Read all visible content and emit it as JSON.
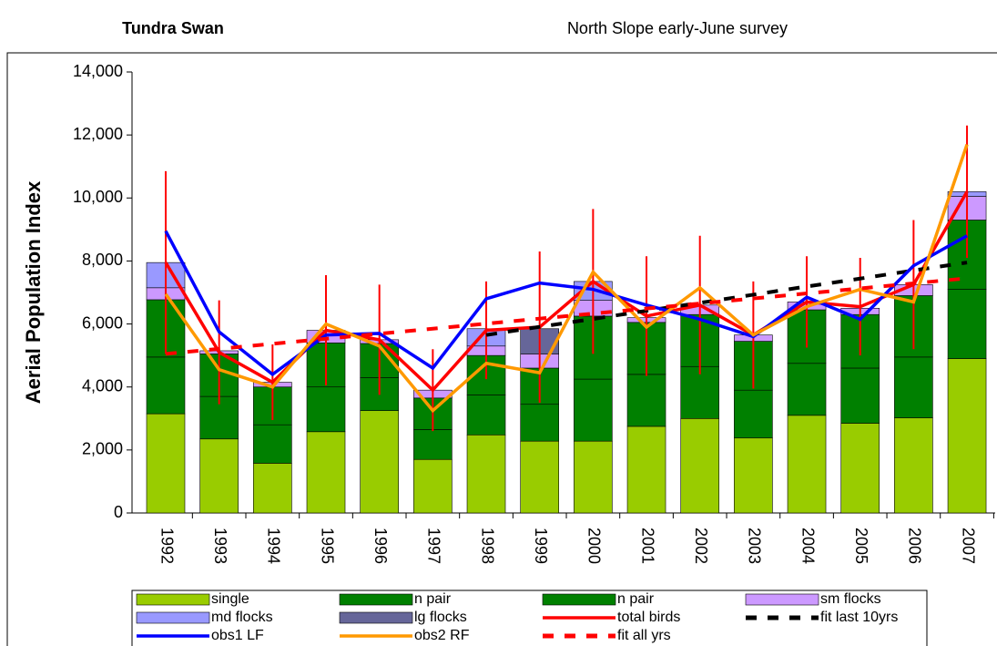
{
  "chart_data": {
    "type": "bar",
    "title": "Tundra Swan",
    "subtitle": "North Slope early-June survey",
    "y_label": "Aerial Population Index",
    "categories": [
      "1992",
      "1993",
      "1994",
      "1995",
      "1996",
      "1997",
      "1998",
      "1999",
      "2000",
      "2001",
      "2002",
      "2003",
      "2004",
      "2005",
      "2006",
      "2007"
    ],
    "ylim": [
      0,
      14000
    ],
    "yticks": [
      0,
      {
        "value": 2000,
        "label": "2,000"
      },
      {
        "value": 4000,
        "label": "4,000"
      },
      {
        "value": 6000,
        "label": "6,000"
      },
      {
        "value": 8000,
        "label": "8,000"
      },
      {
        "value": 10000,
        "label": "10,000"
      },
      {
        "value": 12000,
        "label": "12,000"
      },
      {
        "value": 14000,
        "label": "14,000"
      }
    ],
    "stacked": true,
    "series": [
      {
        "name": "single",
        "type": "bar",
        "color": "#99cc00",
        "values": [
          3150,
          2350,
          1580,
          2580,
          3250,
          1700,
          2480,
          2280,
          2280,
          2750,
          3000,
          2380,
          3100,
          2850,
          3020,
          4900
        ]
      },
      {
        "name": "n pair",
        "type": "bar",
        "color": "#008000",
        "values": [
          1800,
          1350,
          1220,
          1420,
          1050,
          950,
          1270,
          1170,
          1970,
          1650,
          1650,
          1520,
          1650,
          1750,
          1930,
          2200
        ]
      },
      {
        "name": "n pair",
        "type": "bar",
        "color": "#008000",
        "values": [
          1820,
          1350,
          1200,
          1400,
          1080,
          1000,
          1250,
          1150,
          2000,
          1650,
          1650,
          1550,
          1700,
          1700,
          1950,
          2200
        ]
      },
      {
        "name": "sm flocks",
        "type": "bar",
        "color": "#cc99ff",
        "values": [
          380,
          100,
          150,
          400,
          120,
          250,
          300,
          450,
          500,
          150,
          300,
          200,
          250,
          200,
          350,
          750
        ]
      },
      {
        "name": "md flocks",
        "type": "bar",
        "color": "#9999ff",
        "values": [
          800,
          0,
          0,
          0,
          0,
          0,
          550,
          0,
          600,
          0,
          0,
          0,
          0,
          0,
          0,
          150
        ]
      },
      {
        "name": "lg flocks",
        "type": "bar",
        "color": "#666699",
        "values": [
          0,
          0,
          0,
          0,
          0,
          0,
          0,
          800,
          0,
          0,
          0,
          0,
          0,
          0,
          0,
          0
        ]
      },
      {
        "name": "total birds",
        "type": "line",
        "color": "#ff0000",
        "dash": false,
        "values": [
          7950,
          5100,
          4150,
          5800,
          5500,
          3900,
          5800,
          5900,
          7350,
          6250,
          6600,
          5650,
          6700,
          6550,
          7250,
          10200
        ],
        "errors": [
          2900,
          1650,
          1200,
          1750,
          1750,
          1300,
          1550,
          2400,
          2300,
          1900,
          2200,
          1700,
          1450,
          1550,
          2050,
          2100
        ]
      },
      {
        "name": "fit last 10yrs",
        "type": "line",
        "color": "#000000",
        "dash": true,
        "values": [
          null,
          null,
          null,
          null,
          null,
          null,
          5650,
          5910,
          6160,
          6420,
          6670,
          6930,
          7190,
          7440,
          7700,
          7950
        ]
      },
      {
        "name": "obs1 LF",
        "type": "line",
        "color": "#0000ff",
        "dash": false,
        "values": [
          8950,
          5750,
          4400,
          5650,
          5700,
          4600,
          6800,
          7300,
          7100,
          6600,
          6150,
          5600,
          6850,
          6150,
          7850,
          8800
        ]
      },
      {
        "name": "obs2 RF",
        "type": "line",
        "color": "#ff9900",
        "dash": false,
        "values": [
          6950,
          4550,
          4000,
          6000,
          5300,
          3250,
          4750,
          4450,
          7650,
          5900,
          7150,
          5650,
          6550,
          7100,
          6700,
          11700
        ]
      },
      {
        "name": "fit all yrs",
        "type": "line",
        "color": "#ff0000",
        "dash": true,
        "values": [
          5050,
          5210,
          5370,
          5530,
          5690,
          5850,
          6010,
          6170,
          6330,
          6490,
          6650,
          6810,
          6970,
          7130,
          7290,
          7450
        ]
      }
    ]
  }
}
